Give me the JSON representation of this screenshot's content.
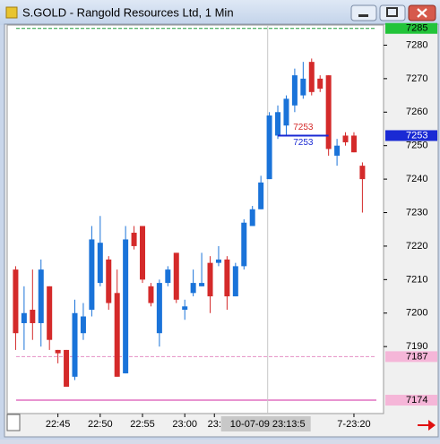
{
  "window": {
    "title": "S.GOLD - Rangold Resources Ltd, 1 Min"
  },
  "chart_data": {
    "type": "candlestick",
    "ylim": [
      7170,
      7286
    ],
    "yticks": [
      7190,
      7200,
      7210,
      7220,
      7230,
      7240,
      7250,
      7260,
      7270,
      7280
    ],
    "xlim": [
      -1,
      43.5
    ],
    "xticks": [
      {
        "value": 5,
        "label": "22:45"
      },
      {
        "value": 10,
        "label": "22:50"
      },
      {
        "value": 15,
        "label": "22:55"
      },
      {
        "value": 20,
        "label": "23:00"
      },
      {
        "value": 23.5,
        "label": "23:"
      },
      {
        "value": 40,
        "label": "7-23:20"
      }
    ],
    "up_color": "#1a73d9",
    "down_color": "#d42a2a",
    "open": [
      7213,
      7197,
      7201,
      7197,
      7208,
      7189,
      7189,
      7181,
      7194,
      7201,
      7209,
      7216,
      7206,
      7182,
      7224,
      7226,
      7208,
      7194,
      7209,
      7218,
      7201,
      7206,
      7208,
      7215,
      7215,
      7216,
      7205,
      7214,
      7226,
      7231,
      7240,
      7253,
      7256,
      7262,
      7265,
      7275,
      7270,
      7271,
      7247,
      7253,
      7253,
      7244
    ],
    "high": [
      7214,
      7208,
      7213,
      7216,
      7208,
      7189,
      7189,
      7204,
      7203,
      7226,
      7229,
      7217,
      7213,
      7226,
      7226,
      7226,
      7209,
      7210,
      7214,
      7218,
      7204,
      7213,
      7218,
      7217,
      7220,
      7217,
      7215,
      7228,
      7232,
      7241,
      7260,
      7262,
      7265,
      7273,
      7275,
      7276,
      7271,
      7271,
      7252,
      7254,
      7254,
      7245
    ],
    "low": [
      7189,
      7189,
      7192,
      7190,
      7189,
      7185,
      7178,
      7180,
      7192,
      7199,
      7208,
      7201,
      7181,
      7182,
      7219,
      7209,
      7202,
      7190,
      7208,
      7203,
      7198,
      7205,
      7208,
      7200,
      7214,
      7201,
      7205,
      7213,
      7226,
      7231,
      7240,
      7252,
      7253,
      7260,
      7264,
      7265,
      7266,
      7247,
      7244,
      7250,
      7248,
      7230
    ],
    "close": [
      7194,
      7200,
      7197,
      7213,
      7192,
      7188,
      7178,
      7200,
      7199,
      7222,
      7221,
      7203,
      7181,
      7222,
      7220,
      7210,
      7203,
      7209,
      7213,
      7204,
      7202,
      7209,
      7209,
      7205,
      7216,
      7205,
      7214,
      7227,
      7231,
      7239,
      7259,
      7260,
      7264,
      7271,
      7270,
      7266,
      7267,
      7249,
      7250,
      7251,
      7248,
      7240
    ],
    "levels": [
      {
        "value": 7285,
        "color": "#1f9e3a",
        "style": "dashed",
        "label_bg": "#22c43a",
        "label_color": "#000000"
      },
      {
        "value": 7253,
        "color": "#1a2ad4",
        "style": "label",
        "label_bg": "#1a2ad4",
        "label_color": "#ffffff"
      },
      {
        "value": 7187,
        "color": "#e58fc4",
        "style": "dashed",
        "label_bg": "#f5b6d8",
        "label_color": "#000000"
      },
      {
        "value": 7174,
        "color": "#e070c0",
        "style": "solid",
        "label_bg": "#f5b6d8",
        "label_color": "#000000"
      }
    ],
    "annotation": {
      "value": 7253,
      "from": 31,
      "to": 37
    },
    "crosshair": {
      "x": 29.8,
      "label": "10-07-09 23:13:5"
    }
  }
}
